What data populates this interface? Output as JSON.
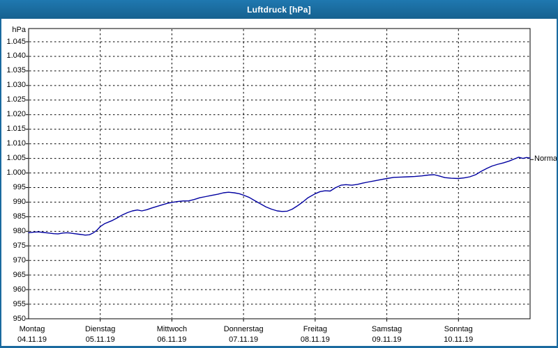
{
  "window": {
    "title": "Luftdruck [hPa]",
    "titlebar_color": "#1a6a9f",
    "border_color": "#1a6a9f",
    "background_color": "#ffffff"
  },
  "chart_data": {
    "type": "line",
    "title": "Luftdruck [hPa]",
    "ylabel": "hPa",
    "unit_label": "hPa",
    "grid": "dashed-black",
    "background": "#ffffff",
    "line_color": "#0000a0",
    "ylim": [
      950,
      1045
    ],
    "y_tick_step": 5,
    "y_ticks": [
      1045,
      1040,
      1035,
      1030,
      1025,
      1020,
      1015,
      1010,
      1005,
      1000,
      995,
      990,
      985,
      980,
      975,
      970,
      965,
      960,
      955,
      950
    ],
    "y_tick_labels": [
      "1.045",
      "1.040",
      "1.035",
      "1.030",
      "1.025",
      "1.020",
      "1.015",
      "1.010",
      "1.005",
      "1.000",
      "995",
      "990",
      "985",
      "980",
      "975",
      "970",
      "965",
      "960",
      "955",
      "950"
    ],
    "xlim_days": [
      0,
      7
    ],
    "x_days": [
      {
        "name": "Montag",
        "date": "04.11.19"
      },
      {
        "name": "Dienstag",
        "date": "05.11.19"
      },
      {
        "name": "Mittwoch",
        "date": "06.11.19"
      },
      {
        "name": "Donnerstag",
        "date": "07.11.19"
      },
      {
        "name": "Freitag",
        "date": "08.11.19"
      },
      {
        "name": "Samstag",
        "date": "09.11.19"
      },
      {
        "name": "Sonntag",
        "date": "10.11.19"
      }
    ],
    "annotation": {
      "label": "Normal",
      "value": 1004.6
    },
    "series": [
      {
        "name": "Luftdruck",
        "color": "#0000a0",
        "points": [
          [
            0.0,
            979.5
          ],
          [
            0.07,
            979.7
          ],
          [
            0.14,
            979.8
          ],
          [
            0.21,
            979.6
          ],
          [
            0.28,
            979.4
          ],
          [
            0.35,
            979.2
          ],
          [
            0.41,
            979.1
          ],
          [
            0.48,
            979.4
          ],
          [
            0.53,
            979.5
          ],
          [
            0.58,
            979.4
          ],
          [
            0.64,
            979.2
          ],
          [
            0.7,
            979.0
          ],
          [
            0.76,
            978.8
          ],
          [
            0.79,
            978.7
          ],
          [
            0.85,
            978.8
          ],
          [
            0.9,
            979.4
          ],
          [
            0.95,
            980.3
          ],
          [
            1.0,
            981.6
          ],
          [
            1.06,
            982.6
          ],
          [
            1.16,
            983.6
          ],
          [
            1.23,
            984.5
          ],
          [
            1.3,
            985.5
          ],
          [
            1.38,
            986.4
          ],
          [
            1.45,
            987.0
          ],
          [
            1.52,
            987.3
          ],
          [
            1.58,
            987.0
          ],
          [
            1.65,
            987.4
          ],
          [
            1.72,
            988.0
          ],
          [
            1.8,
            988.6
          ],
          [
            1.88,
            989.2
          ],
          [
            1.94,
            989.6
          ],
          [
            2.0,
            989.9
          ],
          [
            2.08,
            990.2
          ],
          [
            2.16,
            990.4
          ],
          [
            2.23,
            990.4
          ],
          [
            2.31,
            990.9
          ],
          [
            2.39,
            991.5
          ],
          [
            2.47,
            991.9
          ],
          [
            2.55,
            992.3
          ],
          [
            2.64,
            992.7
          ],
          [
            2.72,
            993.2
          ],
          [
            2.79,
            993.4
          ],
          [
            2.87,
            993.2
          ],
          [
            2.94,
            992.9
          ],
          [
            3.0,
            992.4
          ],
          [
            3.08,
            991.6
          ],
          [
            3.15,
            990.6
          ],
          [
            3.23,
            989.5
          ],
          [
            3.31,
            988.4
          ],
          [
            3.39,
            987.6
          ],
          [
            3.47,
            987.0
          ],
          [
            3.54,
            986.8
          ],
          [
            3.61,
            986.9
          ],
          [
            3.68,
            987.6
          ],
          [
            3.75,
            988.7
          ],
          [
            3.83,
            990.1
          ],
          [
            3.9,
            991.5
          ],
          [
            4.0,
            992.9
          ],
          [
            4.07,
            993.6
          ],
          [
            4.14,
            993.9
          ],
          [
            4.21,
            993.8
          ],
          [
            4.28,
            994.9
          ],
          [
            4.36,
            995.8
          ],
          [
            4.43,
            996.0
          ],
          [
            4.51,
            995.8
          ],
          [
            4.59,
            996.1
          ],
          [
            4.66,
            996.5
          ],
          [
            4.74,
            996.9
          ],
          [
            4.83,
            997.3
          ],
          [
            4.91,
            997.7
          ],
          [
            5.0,
            998.1
          ],
          [
            5.1,
            998.5
          ],
          [
            5.2,
            998.6
          ],
          [
            5.3,
            998.7
          ],
          [
            5.39,
            998.8
          ],
          [
            5.49,
            999.0
          ],
          [
            5.58,
            999.3
          ],
          [
            5.66,
            999.4
          ],
          [
            5.74,
            998.9
          ],
          [
            5.81,
            998.4
          ],
          [
            5.9,
            998.2
          ],
          [
            6.0,
            998.1
          ],
          [
            6.08,
            998.3
          ],
          [
            6.16,
            998.7
          ],
          [
            6.24,
            999.4
          ],
          [
            6.32,
            1000.6
          ],
          [
            6.4,
            1001.6
          ],
          [
            6.47,
            1002.4
          ],
          [
            6.55,
            1003.0
          ],
          [
            6.63,
            1003.5
          ],
          [
            6.71,
            1004.1
          ],
          [
            6.79,
            1004.9
          ],
          [
            6.84,
            1005.4
          ],
          [
            6.9,
            1005.0
          ],
          [
            6.95,
            1005.3
          ],
          [
            7.0,
            1005.1
          ]
        ]
      }
    ]
  }
}
